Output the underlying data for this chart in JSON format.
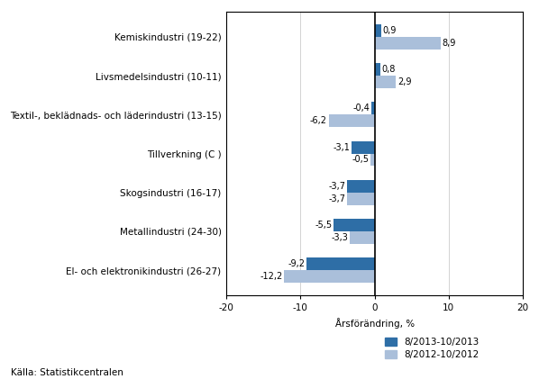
{
  "categories": [
    "El- och elektronikindustri (26-27)",
    "Metallindustri (24-30)",
    "Skogsindustri (16-17)",
    "Tillverkning (C )",
    "Textil-, beklädnads- och läderindustri (13-15)",
    "Livsmedelsindustri (10-11)",
    "Kemiskindustri (19-22)"
  ],
  "series1_values": [
    -9.2,
    -5.5,
    -3.7,
    -3.1,
    -0.4,
    0.8,
    0.9
  ],
  "series2_values": [
    -12.2,
    -3.3,
    -3.7,
    -0.5,
    -6.2,
    2.9,
    8.9
  ],
  "series1_color": "#2E6EA6",
  "series2_color": "#AABFDA",
  "series1_label": "8/2013-10/2013",
  "series2_label": "8/2012-10/2012",
  "xlabel": "Årsförändring, %",
  "xlim": [
    -20,
    20
  ],
  "xticks": [
    -20,
    -10,
    0,
    10,
    20
  ],
  "source": "Källa: Statistikcentralen",
  "bar_height": 0.32,
  "label_fontsize": 7.5,
  "tick_fontsize": 7.5,
  "source_fontsize": 7.5,
  "value_fontsize": 7.0
}
